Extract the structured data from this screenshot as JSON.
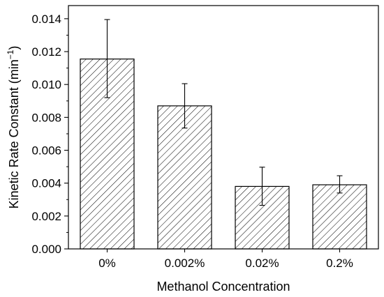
{
  "chart_data": {
    "type": "bar",
    "categories": [
      "0%",
      "0.002%",
      "0.02%",
      "0.2%"
    ],
    "values": [
      0.01155,
      0.0087,
      0.0038,
      0.0039
    ],
    "errors_upper": [
      0.01395,
      0.01005,
      0.00497,
      0.00445
    ],
    "errors_lower": [
      0.0092,
      0.00735,
      0.00265,
      0.0034
    ],
    "xlabel": "Methanol Concentration",
    "ylabel_main": "Kinetic Rate Constant (min",
    "ylabel_sup": "−1",
    "ylabel_close": ")",
    "ylim": [
      0,
      0.0148
    ],
    "yticks": [
      "0.000",
      "0.002",
      "0.004",
      "0.006",
      "0.008",
      "0.010",
      "0.012",
      "0.014"
    ],
    "ytick_values": [
      0,
      0.002,
      0.004,
      0.006,
      0.008,
      0.01,
      0.012,
      0.014
    ],
    "bar_fill": "hatched",
    "grid": false,
    "legend": "none",
    "colors": {
      "bar_edge": "#000000",
      "hatch": "#000000",
      "background": "#ffffff"
    }
  }
}
